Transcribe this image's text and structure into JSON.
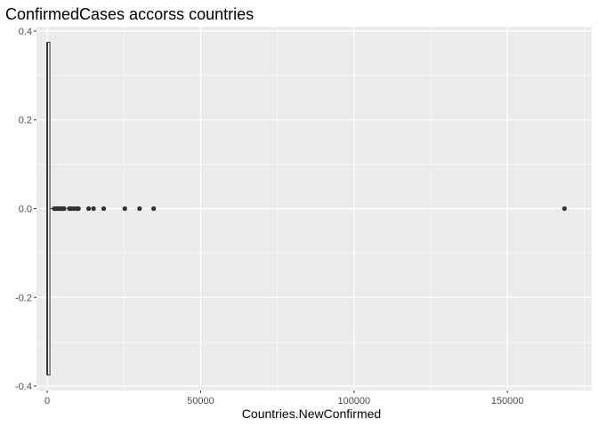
{
  "chart_data": {
    "type": "boxplot",
    "title": "ConfirmedCases accorss countries",
    "xlabel": "Countries.NewConfirmed",
    "ylabel": "",
    "xlim": [
      -3500,
      177500
    ],
    "ylim": [
      -0.41,
      0.41
    ],
    "x_ticks": [
      0,
      50000,
      100000,
      150000
    ],
    "x_tick_labels": [
      "0",
      "50000",
      "100000",
      "150000"
    ],
    "y_ticks": [
      -0.4,
      -0.2,
      0.0,
      0.2,
      0.4
    ],
    "y_tick_labels": [
      "-0.4",
      "-0.2",
      "0.0",
      "0.2",
      "0.4"
    ],
    "grid": true,
    "background": "#ebebeb",
    "grid_color": "#ffffff",
    "box": {
      "orientation": "horizontal",
      "q1": 0,
      "median": 0,
      "q3": 800,
      "whisker_low": 0,
      "whisker_high": 2000,
      "width": [
        -0.375,
        0.375
      ]
    },
    "outliers": [
      {
        "x": 2300,
        "y": 0
      },
      {
        "x": 2600,
        "y": 0
      },
      {
        "x": 3000,
        "y": 0
      },
      {
        "x": 3400,
        "y": 0
      },
      {
        "x": 3800,
        "y": 0
      },
      {
        "x": 4300,
        "y": 0
      },
      {
        "x": 4900,
        "y": 0
      },
      {
        "x": 5500,
        "y": 0
      },
      {
        "x": 7200,
        "y": 0
      },
      {
        "x": 7900,
        "y": 0
      },
      {
        "x": 8700,
        "y": 0
      },
      {
        "x": 9600,
        "y": 0
      },
      {
        "x": 10200,
        "y": 0
      },
      {
        "x": 13500,
        "y": 0
      },
      {
        "x": 15100,
        "y": 0
      },
      {
        "x": 18400,
        "y": 0
      },
      {
        "x": 25300,
        "y": 0
      },
      {
        "x": 30100,
        "y": 0
      },
      {
        "x": 34700,
        "y": 0
      },
      {
        "x": 168600,
        "y": 0
      }
    ]
  }
}
